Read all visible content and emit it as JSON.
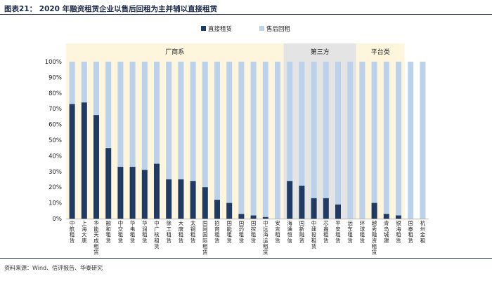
{
  "header": {
    "title": "图表21：  2020 年融资租赁企业以售后回租为主并辅以直接租赁"
  },
  "footer": {
    "source": "资料来源：Wind、信评报告、华泰研究"
  },
  "colors": {
    "direct": "#1f3b63",
    "leaseback": "#bcd2ea",
    "group_a": "#fdf5dc",
    "group_b": "#e4e4e4",
    "group_c": "#fdf5dc"
  },
  "chart_data": {
    "type": "bar",
    "stacked": true,
    "percent": true,
    "ylim": [
      0,
      100
    ],
    "yticks": [
      "0%",
      "10%",
      "20%",
      "30%",
      "40%",
      "50%",
      "60%",
      "70%",
      "80%",
      "90%",
      "100%"
    ],
    "legend_position": "top",
    "groups": [
      {
        "name": "厂商系",
        "start": 0,
        "end": 17
      },
      {
        "name": "第三方",
        "start": 18,
        "end": 23
      },
      {
        "name": "平台类",
        "start": 24,
        "end": 27
      }
    ],
    "categories": [
      "中航租赁",
      "上海大唐",
      "华能天成租赁",
      "融和租赁",
      "中交租赁",
      "华电租赁",
      "华润租赁",
      "中广核租赁",
      "徐工租赁",
      "大唐租赁",
      "太钢租赁",
      "国网国际租赁",
      "招商租赁",
      "国能租赁",
      "国药租赁",
      "国控租赁",
      "中远海运租赁",
      "安吉租赁",
      "海通恒信",
      "国新融资",
      "中建投租赁",
      "芯鑫租赁",
      "平安租赁",
      "远东租赁",
      "环球租赁",
      "越秀融资租赁",
      "青岛城建",
      "银海租赁",
      "国泰租赁",
      "杭州金租"
    ],
    "series": [
      {
        "name": "直接租赁",
        "values": [
          73,
          74,
          66,
          45,
          33,
          33,
          31,
          35,
          25,
          25,
          24,
          20,
          12,
          10,
          3,
          2,
          1,
          0,
          24,
          21,
          13,
          13,
          9,
          0,
          0,
          10,
          3,
          2,
          0,
          0
        ]
      },
      {
        "name": "售后回租",
        "values": [
          27,
          26,
          34,
          55,
          67,
          67,
          69,
          65,
          75,
          75,
          76,
          80,
          88,
          90,
          97,
          98,
          99,
          100,
          76,
          79,
          87,
          87,
          91,
          100,
          100,
          90,
          97,
          98,
          100,
          100
        ]
      }
    ]
  }
}
